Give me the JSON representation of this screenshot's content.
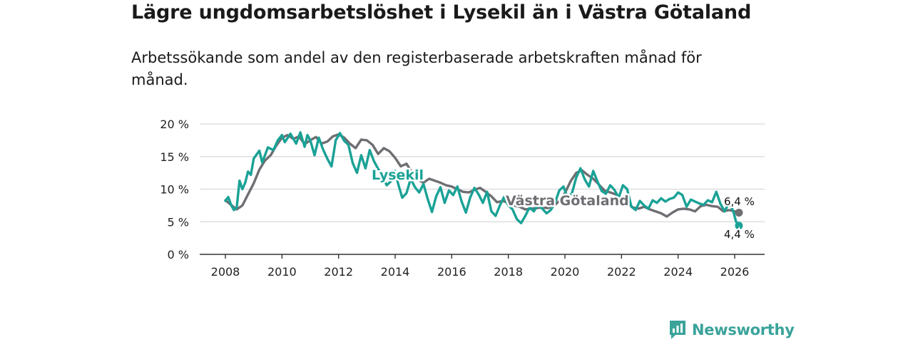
{
  "title": "Lägre ungdomsarbetslöshet i Lysekil än i Västra Götaland",
  "subtitle": "Arbetssökande som andel av den registerbaserade arbetskraften månad för månad.",
  "brand": {
    "name": "Newsworthy",
    "icon": "newsworthy-logo-icon",
    "color": "#3aa39a"
  },
  "chart_data": {
    "type": "line",
    "title": "Lägre ungdomsarbetslöshet i Lysekil än i Västra Götaland",
    "xlabel": "",
    "ylabel": "",
    "xlim": [
      2007.7,
      2027.0
    ],
    "ylim": [
      0,
      20
    ],
    "grid": true,
    "y_ticks": [
      0,
      5,
      10,
      15,
      20
    ],
    "y_tick_labels": [
      "0 %",
      "5 %",
      "10 %",
      "15 %",
      "20 %"
    ],
    "x_ticks": [
      2008,
      2010,
      2012,
      2014,
      2016,
      2018,
      2020,
      2022,
      2024,
      2026
    ],
    "x_tick_labels": [
      "2008",
      "2010",
      "2012",
      "2014",
      "2016",
      "2018",
      "2020",
      "2022",
      "2024",
      "2026"
    ],
    "series": [
      {
        "name": "Västra Götaland",
        "label": "Västra Götaland",
        "color": "#6e6e73",
        "end_label": "6,4 %",
        "end_value": 6.4,
        "points": [
          [
            2008.0,
            8.3
          ],
          [
            2008.2,
            7.6
          ],
          [
            2008.4,
            6.9
          ],
          [
            2008.6,
            7.5
          ],
          [
            2008.8,
            9.2
          ],
          [
            2009.0,
            10.9
          ],
          [
            2009.2,
            13.0
          ],
          [
            2009.4,
            14.4
          ],
          [
            2009.6,
            15.2
          ],
          [
            2009.8,
            16.7
          ],
          [
            2010.0,
            17.9
          ],
          [
            2010.2,
            18.3
          ],
          [
            2010.4,
            17.7
          ],
          [
            2010.6,
            18.1
          ],
          [
            2010.8,
            16.9
          ],
          [
            2011.0,
            17.5
          ],
          [
            2011.2,
            18.0
          ],
          [
            2011.4,
            17.0
          ],
          [
            2011.6,
            17.3
          ],
          [
            2011.8,
            18.1
          ],
          [
            2012.0,
            18.4
          ],
          [
            2012.2,
            17.9
          ],
          [
            2012.4,
            17.0
          ],
          [
            2012.6,
            16.3
          ],
          [
            2012.8,
            17.6
          ],
          [
            2013.0,
            17.5
          ],
          [
            2013.2,
            16.8
          ],
          [
            2013.4,
            15.4
          ],
          [
            2013.6,
            16.3
          ],
          [
            2013.8,
            15.8
          ],
          [
            2014.0,
            14.8
          ],
          [
            2014.2,
            13.5
          ],
          [
            2014.4,
            13.9
          ],
          [
            2014.6,
            12.5
          ],
          [
            2014.8,
            11.5
          ],
          [
            2015.0,
            11.0
          ],
          [
            2015.2,
            11.6
          ],
          [
            2015.4,
            11.3
          ],
          [
            2015.6,
            11.0
          ],
          [
            2015.8,
            10.6
          ],
          [
            2016.0,
            10.4
          ],
          [
            2016.2,
            10.0
          ],
          [
            2016.4,
            9.6
          ],
          [
            2016.6,
            9.5
          ],
          [
            2016.8,
            9.9
          ],
          [
            2017.0,
            10.2
          ],
          [
            2017.2,
            9.6
          ],
          [
            2017.4,
            8.9
          ],
          [
            2017.6,
            8.0
          ],
          [
            2017.8,
            8.2
          ],
          [
            2018.0,
            7.9
          ],
          [
            2018.2,
            7.5
          ],
          [
            2018.4,
            7.3
          ],
          [
            2018.6,
            6.9
          ],
          [
            2018.8,
            7.0
          ],
          [
            2019.0,
            7.1
          ],
          [
            2019.2,
            7.2
          ],
          [
            2019.4,
            7.1
          ],
          [
            2019.6,
            7.4
          ],
          [
            2019.8,
            8.2
          ],
          [
            2020.0,
            9.4
          ],
          [
            2020.2,
            11.2
          ],
          [
            2020.4,
            12.5
          ],
          [
            2020.6,
            12.9
          ],
          [
            2020.8,
            12.2
          ],
          [
            2021.0,
            11.6
          ],
          [
            2021.2,
            10.7
          ],
          [
            2021.4,
            9.8
          ],
          [
            2021.6,
            9.5
          ],
          [
            2021.8,
            9.2
          ],
          [
            2022.0,
            8.6
          ],
          [
            2022.2,
            7.9
          ],
          [
            2022.4,
            7.2
          ],
          [
            2022.6,
            7.0
          ],
          [
            2022.8,
            7.3
          ],
          [
            2023.0,
            6.9
          ],
          [
            2023.2,
            6.6
          ],
          [
            2023.4,
            6.3
          ],
          [
            2023.6,
            5.8
          ],
          [
            2023.8,
            6.4
          ],
          [
            2024.0,
            6.9
          ],
          [
            2024.2,
            7.0
          ],
          [
            2024.4,
            6.9
          ],
          [
            2024.6,
            6.6
          ],
          [
            2024.8,
            7.4
          ],
          [
            2025.0,
            7.6
          ],
          [
            2025.2,
            7.4
          ],
          [
            2025.4,
            7.3
          ],
          [
            2025.6,
            6.6
          ],
          [
            2025.8,
            6.8
          ],
          [
            2026.0,
            6.6
          ],
          [
            2026.15,
            6.4
          ]
        ]
      },
      {
        "name": "Lysekil",
        "label": "Lysekil",
        "color": "#1aa296",
        "end_label": "4,4 %",
        "end_value": 4.4,
        "points": [
          [
            2008.0,
            8.2
          ],
          [
            2008.1,
            8.8
          ],
          [
            2008.2,
            7.6
          ],
          [
            2008.3,
            6.8
          ],
          [
            2008.4,
            7.2
          ],
          [
            2008.5,
            11.3
          ],
          [
            2008.6,
            10.0
          ],
          [
            2008.7,
            11.0
          ],
          [
            2008.8,
            12.7
          ],
          [
            2008.9,
            12.2
          ],
          [
            2009.0,
            14.7
          ],
          [
            2009.2,
            15.9
          ],
          [
            2009.3,
            14.1
          ],
          [
            2009.4,
            15.2
          ],
          [
            2009.5,
            16.4
          ],
          [
            2009.7,
            16.0
          ],
          [
            2009.85,
            17.5
          ],
          [
            2010.0,
            18.3
          ],
          [
            2010.1,
            17.2
          ],
          [
            2010.3,
            18.5
          ],
          [
            2010.5,
            17.0
          ],
          [
            2010.65,
            18.7
          ],
          [
            2010.8,
            16.5
          ],
          [
            2010.9,
            18.3
          ],
          [
            2011.0,
            17.5
          ],
          [
            2011.15,
            15.2
          ],
          [
            2011.3,
            17.9
          ],
          [
            2011.45,
            16.1
          ],
          [
            2011.6,
            14.7
          ],
          [
            2011.75,
            13.5
          ],
          [
            2011.9,
            17.5
          ],
          [
            2012.05,
            18.6
          ],
          [
            2012.2,
            17.4
          ],
          [
            2012.35,
            16.8
          ],
          [
            2012.5,
            14.0
          ],
          [
            2012.65,
            12.5
          ],
          [
            2012.8,
            15.2
          ],
          [
            2012.95,
            13.2
          ],
          [
            2013.1,
            16.0
          ],
          [
            2013.25,
            14.3
          ],
          [
            2013.4,
            13.1
          ],
          [
            2013.55,
            11.9
          ],
          [
            2013.7,
            10.6
          ],
          [
            2013.85,
            11.2
          ],
          [
            2014.0,
            12.8
          ],
          [
            2014.1,
            10.9
          ],
          [
            2014.25,
            8.7
          ],
          [
            2014.4,
            9.4
          ],
          [
            2014.55,
            11.6
          ],
          [
            2014.7,
            10.3
          ],
          [
            2014.85,
            9.5
          ],
          [
            2015.0,
            10.8
          ],
          [
            2015.15,
            8.5
          ],
          [
            2015.3,
            6.5
          ],
          [
            2015.45,
            8.9
          ],
          [
            2015.6,
            10.3
          ],
          [
            2015.75,
            7.9
          ],
          [
            2015.9,
            9.8
          ],
          [
            2016.05,
            9.1
          ],
          [
            2016.2,
            10.4
          ],
          [
            2016.35,
            8.1
          ],
          [
            2016.5,
            6.4
          ],
          [
            2016.65,
            8.7
          ],
          [
            2016.8,
            10.2
          ],
          [
            2016.95,
            9.2
          ],
          [
            2017.1,
            7.9
          ],
          [
            2017.25,
            9.6
          ],
          [
            2017.4,
            6.6
          ],
          [
            2017.55,
            5.9
          ],
          [
            2017.7,
            7.5
          ],
          [
            2017.85,
            8.8
          ],
          [
            2018.0,
            7.5
          ],
          [
            2018.15,
            6.9
          ],
          [
            2018.3,
            5.4
          ],
          [
            2018.45,
            4.8
          ],
          [
            2018.6,
            5.9
          ],
          [
            2018.75,
            7.2
          ],
          [
            2018.9,
            6.6
          ],
          [
            2019.05,
            7.6
          ],
          [
            2019.2,
            7.0
          ],
          [
            2019.35,
            6.3
          ],
          [
            2019.5,
            6.8
          ],
          [
            2019.65,
            7.9
          ],
          [
            2019.8,
            9.8
          ],
          [
            2019.95,
            10.4
          ],
          [
            2020.1,
            8.5
          ],
          [
            2020.25,
            9.4
          ],
          [
            2020.4,
            11.8
          ],
          [
            2020.55,
            13.2
          ],
          [
            2020.7,
            11.5
          ],
          [
            2020.85,
            10.4
          ],
          [
            2021.0,
            12.8
          ],
          [
            2021.15,
            11.2
          ],
          [
            2021.3,
            9.7
          ],
          [
            2021.45,
            9.3
          ],
          [
            2021.6,
            10.6
          ],
          [
            2021.75,
            9.9
          ],
          [
            2021.9,
            8.7
          ],
          [
            2022.05,
            10.6
          ],
          [
            2022.2,
            10.0
          ],
          [
            2022.35,
            7.3
          ],
          [
            2022.5,
            6.8
          ],
          [
            2022.65,
            8.2
          ],
          [
            2022.8,
            7.5
          ],
          [
            2022.95,
            7.0
          ],
          [
            2023.1,
            8.3
          ],
          [
            2023.25,
            7.9
          ],
          [
            2023.4,
            8.6
          ],
          [
            2023.55,
            8.1
          ],
          [
            2023.7,
            8.5
          ],
          [
            2023.85,
            8.7
          ],
          [
            2024.0,
            9.5
          ],
          [
            2024.15,
            9.1
          ],
          [
            2024.3,
            7.3
          ],
          [
            2024.45,
            8.4
          ],
          [
            2024.6,
            8.1
          ],
          [
            2024.75,
            7.8
          ],
          [
            2024.9,
            7.6
          ],
          [
            2025.05,
            8.3
          ],
          [
            2025.2,
            8.0
          ],
          [
            2025.35,
            9.6
          ],
          [
            2025.5,
            7.7
          ],
          [
            2025.65,
            6.6
          ],
          [
            2025.8,
            8.0
          ],
          [
            2025.95,
            6.6
          ],
          [
            2026.05,
            5.0
          ],
          [
            2026.15,
            4.4
          ]
        ]
      }
    ]
  }
}
